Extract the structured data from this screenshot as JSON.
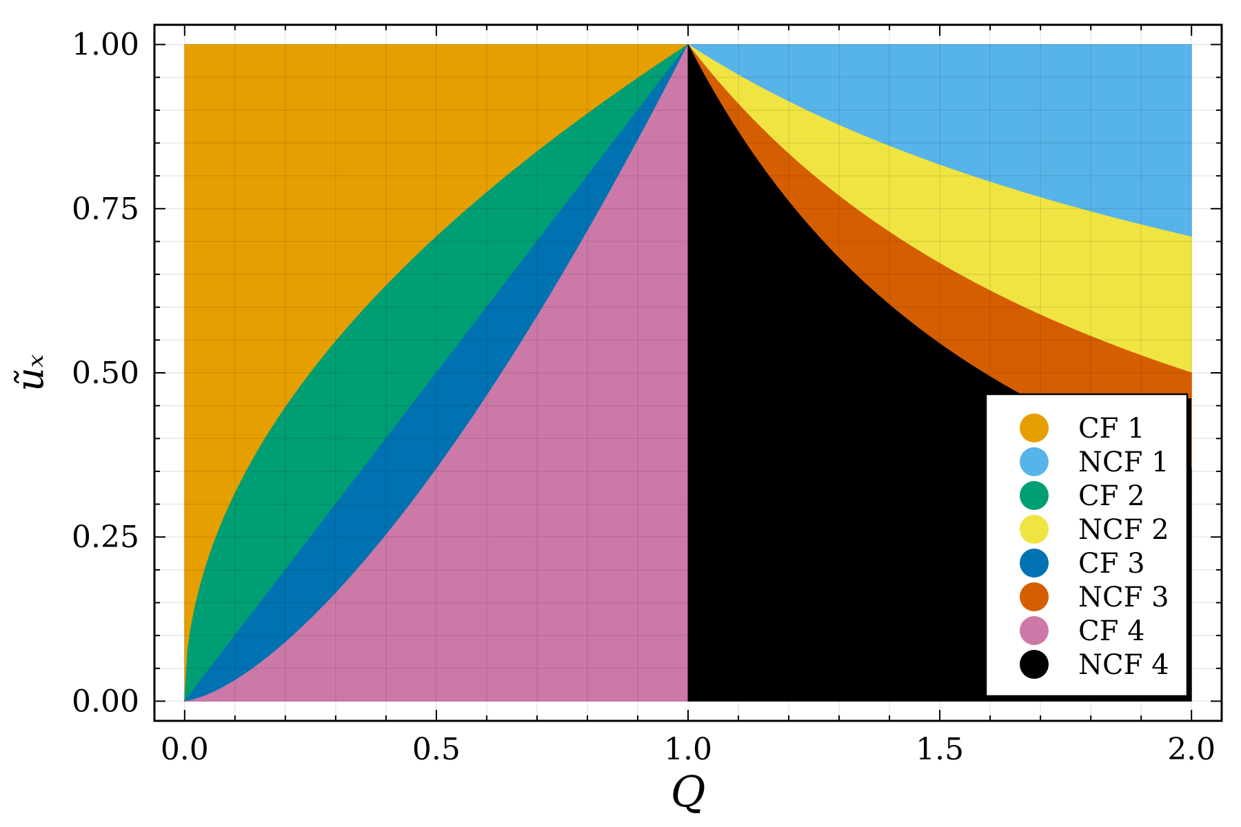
{
  "chart_data": {
    "type": "area",
    "xlabel": "Q",
    "ylabel": "ũₓ",
    "xlim": [
      -0.06,
      2.06
    ],
    "ylim": [
      -0.03,
      1.03
    ],
    "x_ticks": [
      "0.0",
      "0.5",
      "1.0",
      "1.5",
      "2.0"
    ],
    "y_ticks": [
      "0.00",
      "0.25",
      "0.50",
      "0.75",
      "1.00"
    ],
    "grid": true,
    "legend_position": "bottom-right",
    "series": [
      {
        "name": "CF 1",
        "color": "#E69F00",
        "x": [
          0.0,
          1.0
        ],
        "y_lower": [
          0.0,
          1.0
        ],
        "y_upper": [
          1.0,
          1.0
        ]
      },
      {
        "name": "NCF 1",
        "color": "#56B4E9",
        "x": [
          1.0,
          1.25,
          1.5,
          1.75,
          2.0
        ],
        "y_lower": [
          1.0,
          0.894,
          0.816,
          0.756,
          0.707
        ],
        "y_upper": [
          1.0,
          1.0,
          1.0,
          1.0,
          1.0
        ]
      },
      {
        "name": "CF 2",
        "color": "#009E73",
        "x": [
          0.0,
          0.25,
          0.5,
          0.75,
          1.0
        ],
        "y_lower": [
          0.0,
          0.25,
          0.5,
          0.75,
          1.0
        ],
        "y_upper": [
          0.0,
          0.5,
          0.707,
          0.866,
          1.0
        ]
      },
      {
        "name": "NCF 2",
        "color": "#F0E442",
        "x": [
          1.0,
          1.25,
          1.5,
          1.75,
          2.0
        ],
        "y_lower": [
          1.0,
          0.8,
          0.667,
          0.571,
          0.5
        ],
        "y_upper": [
          1.0,
          0.894,
          0.816,
          0.756,
          0.707
        ]
      },
      {
        "name": "CF 3",
        "color": "#0072B2",
        "x": [
          0.0,
          0.25,
          0.5,
          0.75,
          1.0
        ],
        "y_lower": [
          0.0,
          0.125,
          0.354,
          0.65,
          1.0
        ],
        "y_upper": [
          0.0,
          0.25,
          0.5,
          0.75,
          1.0
        ]
      },
      {
        "name": "NCF 3",
        "color": "#D55E00",
        "x": [
          1.0,
          1.25,
          1.5,
          1.75,
          2.0
        ],
        "y_lower": [
          1.0,
          0.716,
          0.544,
          0.432,
          0.354
        ],
        "y_upper": [
          1.0,
          0.8,
          0.667,
          0.571,
          0.5
        ]
      },
      {
        "name": "CF 4",
        "color": "#CC79A7",
        "x": [
          0.0,
          0.25,
          0.5,
          0.75,
          1.0
        ],
        "y_lower": [
          0.0,
          0.0,
          0.0,
          0.0,
          0.0
        ],
        "y_upper": [
          0.0,
          0.125,
          0.354,
          0.65,
          1.0
        ]
      },
      {
        "name": "NCF 4",
        "color": "#000000",
        "x": [
          1.0,
          1.25,
          1.5,
          1.75,
          2.0
        ],
        "y_lower": [
          0.0,
          0.0,
          0.0,
          0.0,
          0.0
        ],
        "y_upper": [
          1.0,
          0.716,
          0.544,
          0.432,
          0.354
        ]
      }
    ]
  }
}
